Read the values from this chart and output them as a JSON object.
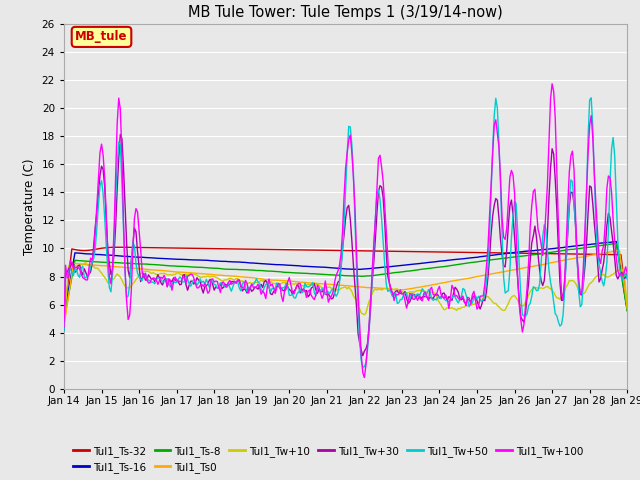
{
  "title": "MB Tule Tower: Tule Temps 1 (3/19/14-now)",
  "ylabel": "Temperature (C)",
  "ylim": [
    0,
    26
  ],
  "yticks": [
    0,
    2,
    4,
    6,
    8,
    10,
    12,
    14,
    16,
    18,
    20,
    22,
    24,
    26
  ],
  "xtick_labels": [
    "Jan 14",
    "Jan 15",
    "Jan 16",
    "Jan 17",
    "Jan 18",
    "Jan 19",
    "Jan 20",
    "Jan 21",
    "Jan 22",
    "Jan 23",
    "Jan 24",
    "Jan 25",
    "Jan 26",
    "Jan 27",
    "Jan 28",
    "Jan 29"
  ],
  "bg_color": "#e8e8e8",
  "grid_color": "#ffffff",
  "annotation_box": {
    "text": "MB_tule",
    "facecolor": "#ffff99",
    "edgecolor": "#cc0000",
    "textcolor": "#cc0000"
  },
  "series": {
    "Tul1_Ts-32": {
      "color": "#cc0000"
    },
    "Tul1_Ts-16": {
      "color": "#0000cc"
    },
    "Tul1_Ts-8": {
      "color": "#00aa00"
    },
    "Tul1_Ts0": {
      "color": "#ffaa00"
    },
    "Tul1_Tw+10": {
      "color": "#cccc00"
    },
    "Tul1_Tw+30": {
      "color": "#aa00aa"
    },
    "Tul1_Tw+50": {
      "color": "#00cccc"
    },
    "Tul1_Tw+100": {
      "color": "#ff00ff"
    }
  }
}
